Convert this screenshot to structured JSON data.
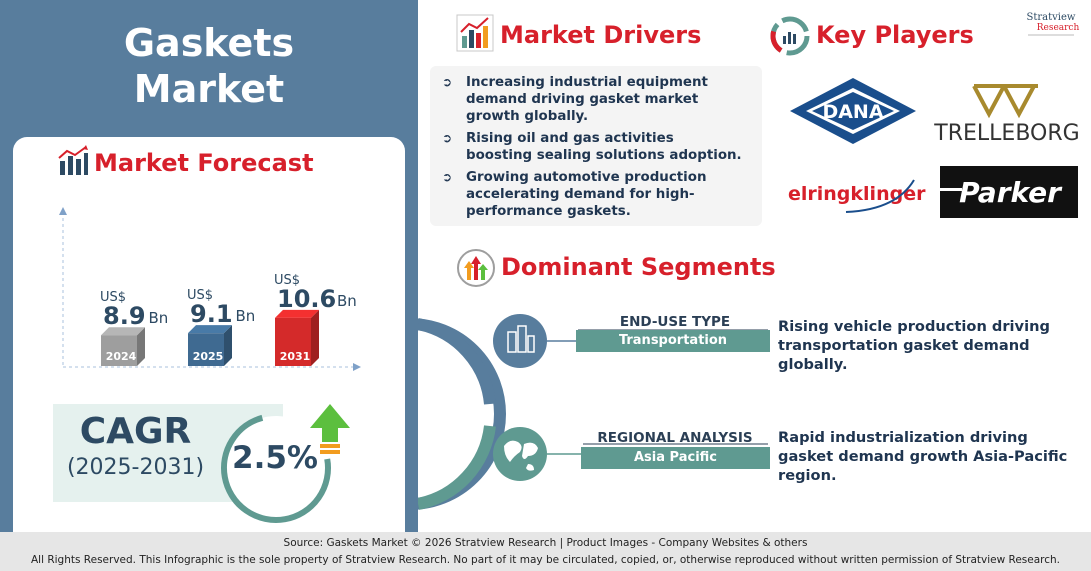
{
  "title": "Gaskets Market",
  "forecast": {
    "title": "Market Forecast",
    "currency": "US$",
    "unit": "Bn"
  },
  "chart_data": {
    "type": "bar",
    "categories": [
      "2024",
      "2025",
      "2031"
    ],
    "values": [
      8.9,
      9.1,
      10.6
    ],
    "value_labels": [
      "8.9",
      "9.1",
      "10.6"
    ],
    "colors": [
      "#9e9e9e",
      "#3f6a91",
      "#d42a2a"
    ],
    "title": "Market Forecast",
    "xlabel": "",
    "ylabel": "",
    "grid": false
  },
  "cagr": {
    "label": "CAGR",
    "range": "(2025-2031)",
    "value": "2.5%"
  },
  "drivers": {
    "title": "Market Drivers",
    "items": [
      "Increasing industrial equipment demand driving gasket market growth globally.",
      "Rising oil and gas activities boosting sealing solutions adoption.",
      "Growing automotive production accelerating demand for high-performance gaskets."
    ]
  },
  "players": {
    "title": "Key Players",
    "logos": [
      "DANA",
      "TRELLEBORG",
      "elringklinger",
      "Parker"
    ]
  },
  "brand": {
    "name": "Stratview",
    "sub": "Research"
  },
  "segments": {
    "title": "Dominant Segments",
    "items": [
      {
        "heading": "END-USE TYPE",
        "value": "Transportation",
        "description": "Rising vehicle production driving transportation gasket demand globally."
      },
      {
        "heading": "REGIONAL ANALYSIS",
        "value": "Asia Pacific",
        "description": "Rapid industrialization driving gasket demand growth Asia-Pacific region."
      }
    ]
  },
  "footer": {
    "source": "Source:  Gaskets Market  © 2026 Stratview Research | Product Images  - Company Websites & others",
    "rights": "All Rights Reserved. This Infographic is the sole property of Stratview Research. No part of it may be circulated, copied, or, otherwise reproduced without written permission of Stratview Research."
  }
}
